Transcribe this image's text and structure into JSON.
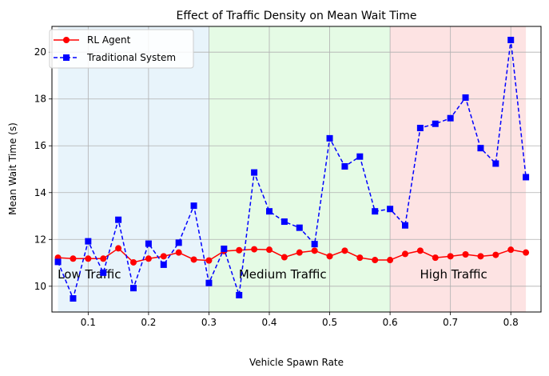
{
  "chart_data": {
    "type": "line",
    "title": "Effect of Traffic Density on Mean Wait Time",
    "xlabel": "Vehicle Spawn Rate",
    "ylabel": "Mean Wait Time (s)",
    "xlim": [
      0.04,
      0.85
    ],
    "ylim": [
      8.9,
      21.1
    ],
    "xticks": [
      0.1,
      0.2,
      0.3,
      0.4,
      0.5,
      0.6,
      0.7,
      0.8
    ],
    "xtick_labels": [
      "0.1",
      "0.2",
      "0.3",
      "0.4",
      "0.5",
      "0.6",
      "0.7",
      "0.8"
    ],
    "yticks": [
      10,
      12,
      14,
      16,
      18,
      20
    ],
    "ytick_labels": [
      "10",
      "12",
      "14",
      "16",
      "18",
      "20"
    ],
    "grid": true,
    "legend_position": "top-left",
    "x": [
      0.05,
      0.075,
      0.1,
      0.125,
      0.15,
      0.175,
      0.2,
      0.225,
      0.25,
      0.275,
      0.3,
      0.325,
      0.35,
      0.375,
      0.4,
      0.425,
      0.45,
      0.475,
      0.5,
      0.525,
      0.55,
      0.575,
      0.6,
      0.625,
      0.65,
      0.675,
      0.7,
      0.725,
      0.75,
      0.775,
      0.8,
      0.825
    ],
    "series": [
      {
        "name": "RL Agent",
        "color": "#ff0000",
        "linestyle": "solid",
        "marker": "circle",
        "values": [
          11.22,
          11.18,
          11.18,
          11.18,
          11.62,
          11.02,
          11.18,
          11.28,
          11.44,
          11.14,
          11.1,
          11.5,
          11.54,
          11.58,
          11.56,
          11.24,
          11.44,
          11.52,
          11.28,
          11.52,
          11.22,
          11.12,
          11.12,
          11.38,
          11.52,
          11.22,
          11.28,
          11.36,
          11.28,
          11.34,
          11.56,
          11.44
        ]
      },
      {
        "name": "Traditional System",
        "color": "#0000ff",
        "linestyle": "dashed",
        "marker": "square",
        "values": [
          11.04,
          9.48,
          11.92,
          10.58,
          12.84,
          9.92,
          11.82,
          10.92,
          11.86,
          13.44,
          10.14,
          11.6,
          9.62,
          14.86,
          13.2,
          12.76,
          12.5,
          11.8,
          16.32,
          15.12,
          15.54,
          13.2,
          13.3,
          12.6,
          16.76,
          16.94,
          17.18,
          18.06,
          15.9,
          15.24,
          20.52,
          14.66
        ]
      }
    ],
    "regions": [
      {
        "label": "Low Traffic",
        "x_start": 0.05,
        "x_end": 0.3,
        "color": "#e8f4fb",
        "label_x": 0.0495,
        "label_y": 10.5
      },
      {
        "label": "Medium Traffic",
        "x_start": 0.3,
        "x_end": 0.6,
        "color": "#e5fbe5",
        "label_x": 0.3495,
        "label_y": 10.5
      },
      {
        "label": "High Traffic",
        "x_start": 0.6,
        "x_end": 0.825,
        "color": "#fde3e3",
        "label_x": 0.6495,
        "label_y": 10.5
      }
    ]
  }
}
